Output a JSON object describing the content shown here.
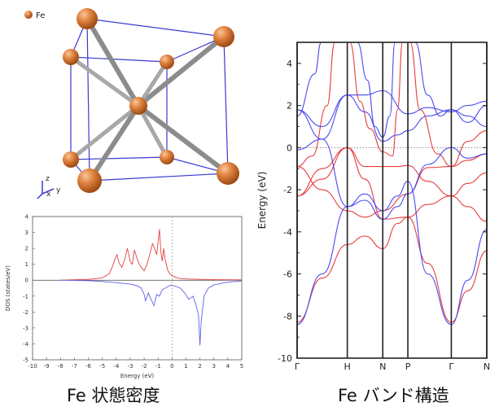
{
  "crystal": {
    "legend_label": "Fe",
    "axes": {
      "z": "z",
      "x": "x",
      "y": "y"
    },
    "atom_color": "#e0823f",
    "bond_color": "#9a9a9a",
    "cell_edge_color": "#3a3ad0"
  },
  "dos": {
    "caption": "Fe 状態密度",
    "chart_data": {
      "type": "line",
      "xlabel": "Energy (eV)",
      "ylabel": "DOS (states/eV)",
      "xlim": [
        -10,
        5
      ],
      "ylim": [
        -5,
        4
      ],
      "xticks": [
        "-10",
        "-9",
        "-8",
        "-7",
        "-6",
        "-5",
        "-4",
        "-3",
        "-2",
        "-1",
        "0",
        "1",
        "2",
        "3",
        "4",
        "5"
      ],
      "yticks": [
        "4",
        "3",
        "2",
        "1",
        "0",
        "-1",
        "-2",
        "-3",
        "-4",
        "-5"
      ],
      "series": [
        {
          "color": "#e44040",
          "x": [
            -8,
            -6,
            -5,
            -4.5,
            -4.3,
            -4.1,
            -3.95,
            -3.8,
            -3.6,
            -3.4,
            -3.2,
            -3.0,
            -2.85,
            -2.7,
            -2.55,
            -2.4,
            -2.2,
            -2.0,
            -1.8,
            -1.6,
            -1.4,
            -1.25,
            -1.1,
            -1.0,
            -0.9,
            -0.8,
            -0.7,
            -0.6,
            -0.5,
            -0.3,
            -0.1,
            0.2,
            0.5,
            1,
            2,
            3,
            5
          ],
          "y": [
            0,
            0.05,
            0.15,
            0.4,
            0.8,
            1.3,
            1.6,
            1.1,
            0.8,
            1.3,
            2.0,
            1.2,
            1.0,
            1.9,
            1.5,
            1.1,
            0.8,
            0.6,
            1.0,
            1.6,
            2.3,
            2.0,
            1.6,
            2.4,
            3.2,
            1.8,
            1.2,
            2.0,
            1.3,
            0.6,
            0.35,
            0.2,
            0.12,
            0.08,
            0.05,
            0.03,
            0.02
          ]
        },
        {
          "color": "#6060e8",
          "x": [
            -8,
            -6,
            -5,
            -4,
            -3,
            -2.5,
            -2.2,
            -2.0,
            -1.9,
            -1.7,
            -1.5,
            -1.3,
            -1.1,
            -0.9,
            -0.7,
            -0.5,
            -0.3,
            -0.1,
            0.1,
            0.3,
            0.6,
            0.9,
            1.2,
            1.5,
            1.7,
            1.9,
            2.0,
            2.1,
            2.3,
            2.6,
            3,
            4,
            5
          ],
          "y": [
            0,
            -0.03,
            -0.08,
            -0.15,
            -0.25,
            -0.35,
            -0.5,
            -0.9,
            -1.3,
            -0.8,
            -1.2,
            -1.6,
            -0.9,
            -1.0,
            -0.6,
            -0.5,
            -0.4,
            -0.3,
            -0.35,
            -0.4,
            -0.5,
            -0.8,
            -1.2,
            -1.0,
            -1.5,
            -2.2,
            -4.1,
            -2.5,
            -1.0,
            -0.5,
            -0.3,
            -0.12,
            -0.05
          ]
        }
      ]
    }
  },
  "band": {
    "caption": "Fe バンド構造",
    "chart_data": {
      "type": "line",
      "ylabel": "Energy (eV)",
      "ylim": [
        -10,
        5
      ],
      "yticks": [
        "4",
        "2",
        "0",
        "-2",
        "-4",
        "-6",
        "-8",
        "-10"
      ],
      "kpoints": [
        "Γ",
        "H",
        "N",
        "P",
        "Γ",
        "N"
      ],
      "kpos": [
        0,
        1,
        1.707,
        2.207,
        3.073,
        3.78
      ]
    }
  }
}
